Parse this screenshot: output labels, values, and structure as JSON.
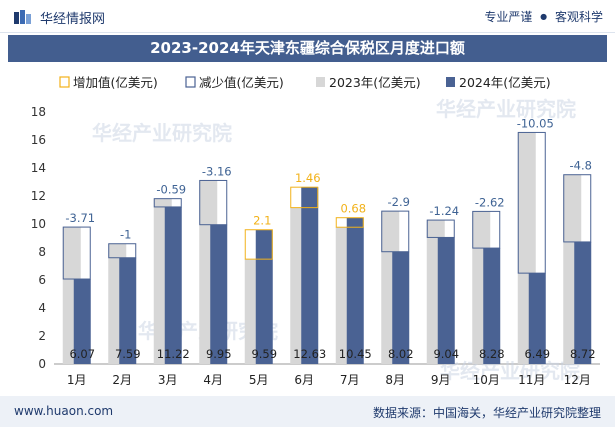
{
  "header": {
    "logo_text": "华经情报网",
    "tagline_1": "专业严谨",
    "tagline_sep": "●",
    "tagline_2": "客观科学"
  },
  "footer": {
    "website": "www.huaon.com",
    "source": "数据来源：中国海关，华经产业研究院整理"
  },
  "watermark": "华经产业研究院",
  "colors": {
    "brand": "#435e8f",
    "bar_2023": "#d7d7d7",
    "bar_2024": "#4a6293",
    "increase": "#f2b21a",
    "decrease": "#4a6293",
    "increase_label": "#f2b21a",
    "decrease_label": "#3f6394"
  },
  "chart_data": {
    "type": "bar",
    "title": "2023-2024年天津东疆综合保税区月度进口额",
    "categories": [
      "1月",
      "2月",
      "3月",
      "4月",
      "5月",
      "6月",
      "7月",
      "8月",
      "9月",
      "10月",
      "11月",
      "12月"
    ],
    "series": [
      {
        "name": "2023年(亿美元)",
        "values": [
          9.78,
          8.59,
          11.81,
          13.11,
          7.49,
          11.17,
          9.77,
          10.92,
          10.28,
          10.9,
          16.54,
          13.52
        ]
      },
      {
        "name": "2024年(亿美元)",
        "values": [
          6.07,
          7.59,
          11.22,
          9.95,
          9.59,
          12.63,
          10.45,
          8.02,
          9.04,
          8.28,
          6.49,
          8.72
        ]
      }
    ],
    "changes": [
      -3.71,
      -1,
      -0.59,
      -3.16,
      2.1,
      1.46,
      0.68,
      -2.9,
      -1.24,
      -2.62,
      -10.05,
      -4.8
    ],
    "change_labels": [
      "-3.71",
      "-1",
      "-0.59",
      "-3.16",
      "2.1",
      "1.46",
      "0.68",
      "-2.9",
      "-1.24",
      "-2.62",
      "-10.05",
      "-4.8"
    ],
    "value_labels_2024": [
      "6.07",
      "7.59",
      "11.22",
      "9.95",
      "9.59",
      "12.63",
      "10.45",
      "8.02",
      "9.04",
      "8.28",
      "6.49",
      "8.72"
    ],
    "legend": [
      "增加值(亿美元)",
      "减少值(亿美元)",
      "2023年(亿美元)",
      "2024年(亿美元)"
    ],
    "legend_position": "top",
    "ylim": [
      0,
      18
    ],
    "yticks": [
      "0",
      "2",
      "4",
      "6",
      "8",
      "10",
      "12",
      "14",
      "16",
      "18"
    ],
    "grid": false
  }
}
